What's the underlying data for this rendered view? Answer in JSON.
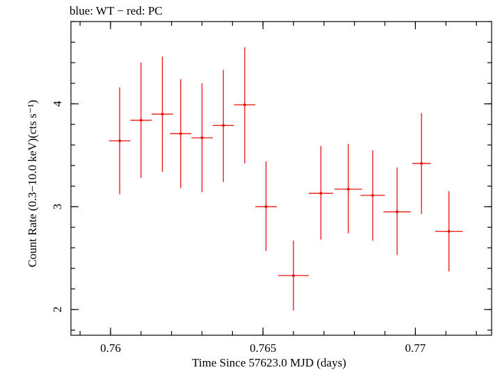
{
  "chart_data": {
    "type": "scatter",
    "title": "blue: WT − red: PC",
    "xlabel": "Time Since 57623.0 MJD (days)",
    "ylabel": "Count Rate (0.3−10.0 keV)(cts s⁻¹)",
    "xlim": [
      0.7587,
      0.7725
    ],
    "ylim": [
      1.75,
      4.8
    ],
    "x_ticks": [
      {
        "value": 0.76,
        "label": "0.76"
      },
      {
        "value": 0.765,
        "label": "0.765"
      },
      {
        "value": 0.77,
        "label": "0.77"
      }
    ],
    "y_ticks": [
      {
        "value": 2,
        "label": "2"
      },
      {
        "value": 3,
        "label": "3"
      },
      {
        "value": 4,
        "label": "4"
      }
    ],
    "x_minor_step": 0.001,
    "y_minor_step": 0.2,
    "grid": false,
    "legend": "none",
    "series": [
      {
        "color": "#e8130f",
        "x": [
          0.7603,
          0.761,
          0.7617,
          0.7623,
          0.763,
          0.7637,
          0.7644,
          0.7651,
          0.766,
          0.7669,
          0.7678,
          0.7686,
          0.7694,
          0.7702,
          0.7711
        ],
        "xerr": [
          0.00035,
          0.00035,
          0.00035,
          0.00035,
          0.00035,
          0.00035,
          0.00035,
          0.00035,
          0.0005,
          0.0004,
          0.00045,
          0.0004,
          0.00045,
          0.0003,
          0.00045
        ],
        "y": [
          3.64,
          3.84,
          3.9,
          3.71,
          3.67,
          3.79,
          3.99,
          3.0,
          2.33,
          3.13,
          3.17,
          3.11,
          2.95,
          3.42,
          2.76
        ],
        "yerr_low": [
          0.52,
          0.56,
          0.56,
          0.53,
          0.53,
          0.55,
          0.57,
          0.43,
          0.34,
          0.45,
          0.43,
          0.44,
          0.42,
          0.49,
          0.39
        ],
        "yerr_high": [
          0.52,
          0.56,
          0.56,
          0.53,
          0.53,
          0.54,
          0.56,
          0.44,
          0.34,
          0.46,
          0.44,
          0.44,
          0.43,
          0.49,
          0.39
        ]
      }
    ]
  }
}
